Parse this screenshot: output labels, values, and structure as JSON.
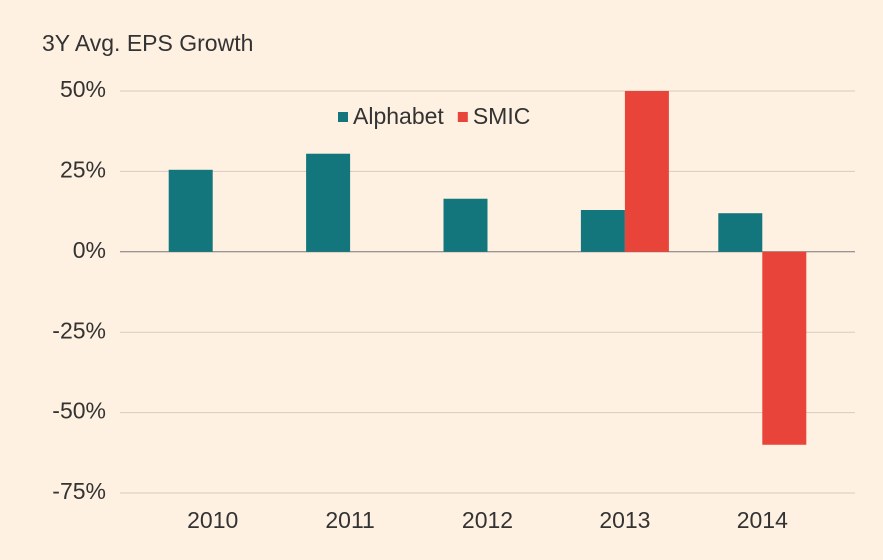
{
  "chart_data": {
    "type": "bar",
    "title": "3Y Avg. EPS Growth",
    "categories": [
      "2010",
      "2011",
      "2012",
      "2013",
      "2014"
    ],
    "series": [
      {
        "name": "Alphabet",
        "color": "#13767d",
        "values": [
          25.5,
          30.5,
          16.5,
          13,
          12
        ]
      },
      {
        "name": "SMIC",
        "color": "#e8443a",
        "values": [
          null,
          null,
          null,
          50,
          -60
        ]
      }
    ],
    "ylim": [
      -75,
      50
    ],
    "yticks": [
      {
        "value": -75,
        "label": "-75%"
      },
      {
        "value": -50,
        "label": "-50%"
      },
      {
        "value": -25,
        "label": "-25%"
      },
      {
        "value": 0,
        "label": "0%"
      },
      {
        "value": 25,
        "label": "25%"
      },
      {
        "value": 50,
        "label": "50%"
      }
    ],
    "grid": true,
    "legend": "top"
  }
}
